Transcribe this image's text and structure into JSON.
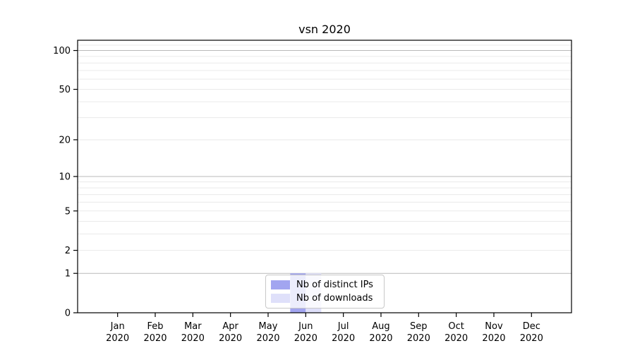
{
  "chart_data": {
    "type": "bar",
    "title": "vsn 2020",
    "categories": [
      "Jan 2020",
      "Feb 2020",
      "Mar 2020",
      "Apr 2020",
      "May 2020",
      "Jun 2020",
      "Jul 2020",
      "Aug 2020",
      "Sep 2020",
      "Oct 2020",
      "Nov 2020",
      "Dec 2020"
    ],
    "series": [
      {
        "name": "Nb of distinct IPs",
        "color": "#a2a5f0",
        "values": [
          0,
          0,
          0,
          0,
          0,
          1,
          0,
          0,
          0,
          0,
          0,
          0
        ]
      },
      {
        "name": "Nb of downloads",
        "color": "#dfe0fa",
        "values": [
          0,
          0,
          0,
          0,
          0,
          1,
          0,
          0,
          0,
          0,
          0,
          0
        ]
      }
    ],
    "yscale": "log1p",
    "ylim": [
      0,
      120
    ],
    "y_ticks": [
      0,
      1,
      2,
      5,
      10,
      20,
      50,
      100
    ],
    "y_major_gridlines": [
      1,
      10,
      100
    ],
    "y_minor_gridlines": [
      2,
      3,
      4,
      5,
      6,
      7,
      8,
      9,
      20,
      30,
      40,
      50,
      60,
      70,
      80,
      90,
      110,
      120
    ],
    "grid": "horizontal",
    "legend_position": "lower center",
    "colors": {
      "background": "#ffffff",
      "text": "#000000",
      "spine": "#000000",
      "grid_major": "#b9b9b9",
      "grid_minor": "#eaeaea",
      "legend_border": "#c8c8c8"
    }
  }
}
